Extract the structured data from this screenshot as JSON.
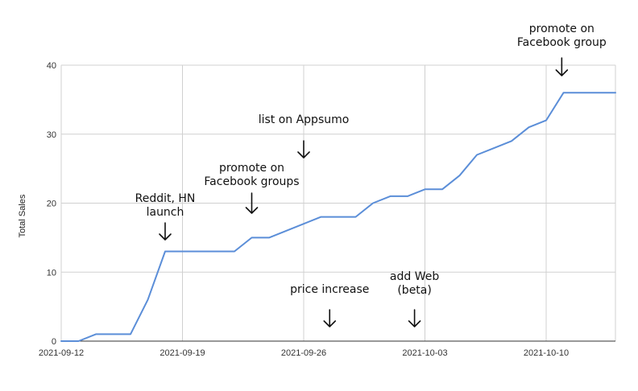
{
  "chart_data": {
    "type": "line",
    "ylabel": "Total Sales",
    "ylim": [
      0,
      40
    ],
    "yticks": [
      0,
      10,
      20,
      30,
      40
    ],
    "xlim": [
      "2021-09-12",
      "2021-10-14"
    ],
    "xticks": [
      "2021-09-12",
      "2021-09-19",
      "2021-09-26",
      "2021-10-03",
      "2021-10-10"
    ],
    "grid": true,
    "series_color": "#5b8ed8",
    "series": [
      {
        "x": [
          "2021-09-12",
          "2021-09-13",
          "2021-09-14",
          "2021-09-15",
          "2021-09-16",
          "2021-09-17",
          "2021-09-18",
          "2021-09-19",
          "2021-09-20",
          "2021-09-21",
          "2021-09-22",
          "2021-09-23",
          "2021-09-24",
          "2021-09-25",
          "2021-09-26",
          "2021-09-27",
          "2021-09-28",
          "2021-09-29",
          "2021-09-30",
          "2021-10-01",
          "2021-10-02",
          "2021-10-03",
          "2021-10-04",
          "2021-10-05",
          "2021-10-06",
          "2021-10-07",
          "2021-10-08",
          "2021-10-09",
          "2021-10-10",
          "2021-10-11",
          "2021-10-12",
          "2021-10-13",
          "2021-10-14"
        ],
        "y": [
          0,
          0,
          1,
          1,
          1,
          6,
          13,
          13,
          13,
          13,
          13,
          15,
          15,
          16,
          17,
          18,
          18,
          18,
          20,
          21,
          21,
          22,
          22,
          24,
          27,
          28,
          29,
          31,
          32,
          36,
          36,
          36,
          36
        ]
      }
    ],
    "annotations": [
      {
        "lines": [
          "Reddit, HN",
          "launch"
        ],
        "date": "2021-09-18"
      },
      {
        "lines": [
          "promote on",
          "Facebook groups"
        ],
        "date": "2021-09-23"
      },
      {
        "lines": [
          "list on Appsumo"
        ],
        "date": "2021-09-26"
      },
      {
        "lines": [
          "price increase"
        ],
        "date": "2021-09-27"
      },
      {
        "lines": [
          "add Web",
          "(beta)"
        ],
        "date": "2021-10-02"
      },
      {
        "lines": [
          "promote on",
          "Facebook group"
        ],
        "date": "2021-10-11"
      }
    ]
  }
}
